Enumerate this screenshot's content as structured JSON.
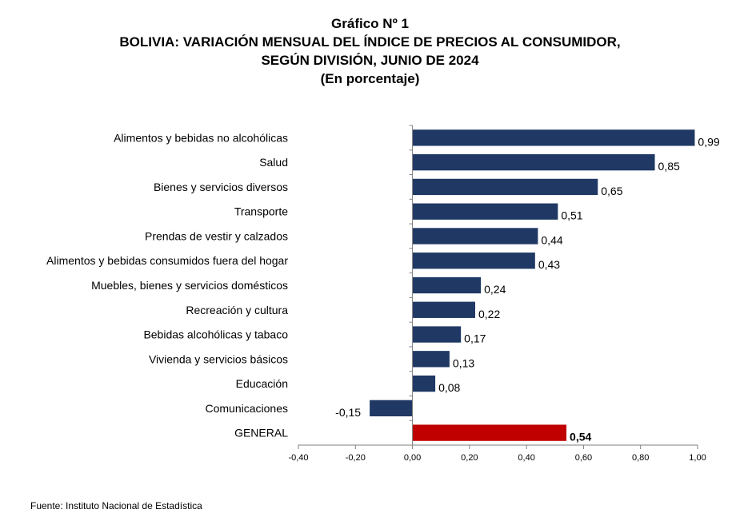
{
  "header": {
    "line1": "Gráfico Nº 1",
    "line2": "BOLIVIA: VARIACIÓN MENSUAL DEL ÍNDICE DE PRECIOS AL CONSUMIDOR,",
    "line3": "SEGÚN DIVISIÓN, JUNIO DE 2024",
    "line4": "(En porcentaje)"
  },
  "footer": {
    "source": "Fuente: Instituto Nacional de Estadística"
  },
  "chart_data": {
    "type": "bar",
    "orientation": "horizontal",
    "title": "BOLIVIA: VARIACIÓN MENSUAL DEL ÍNDICE DE PRECIOS AL CONSUMIDOR, SEGÚN DIVISIÓN, JUNIO DE 2024",
    "subtitle": "(En porcentaje)",
    "xlabel": "",
    "ylabel": "",
    "xlim": [
      -0.4,
      1.0
    ],
    "x_ticks": [
      "-0,40",
      "-0,20",
      "0,00",
      "0,20",
      "0,40",
      "0,60",
      "0,80",
      "1,00"
    ],
    "x_tick_values": [
      -0.4,
      -0.2,
      0.0,
      0.2,
      0.4,
      0.6,
      0.8,
      1.0
    ],
    "grid": false,
    "legend": "none",
    "colors": {
      "bar": "#1f3864",
      "highlight": "#c00000"
    },
    "categories": [
      "Alimentos y bebidas no alcohólicas",
      "Salud",
      "Bienes y servicios diversos",
      "Transporte",
      "Prendas de vestir y calzados",
      "Alimentos y bebidas consumidos fuera del hogar",
      "Muebles, bienes y servicios domésticos",
      "Recreación y cultura",
      "Bebidas alcohólicas y tabaco",
      "Vivienda y servicios básicos",
      "Educación",
      "Comunicaciones",
      "GENERAL"
    ],
    "values": [
      0.99,
      0.85,
      0.65,
      0.51,
      0.44,
      0.43,
      0.24,
      0.22,
      0.17,
      0.13,
      0.08,
      -0.15,
      0.54
    ],
    "value_labels": [
      "0,99",
      "0,85",
      "0,65",
      "0,51",
      "0,44",
      "0,43",
      "0,24",
      "0,22",
      "0,17",
      "0,13",
      "0,08",
      "-0,15",
      "0,54"
    ],
    "highlight_category": "GENERAL"
  }
}
